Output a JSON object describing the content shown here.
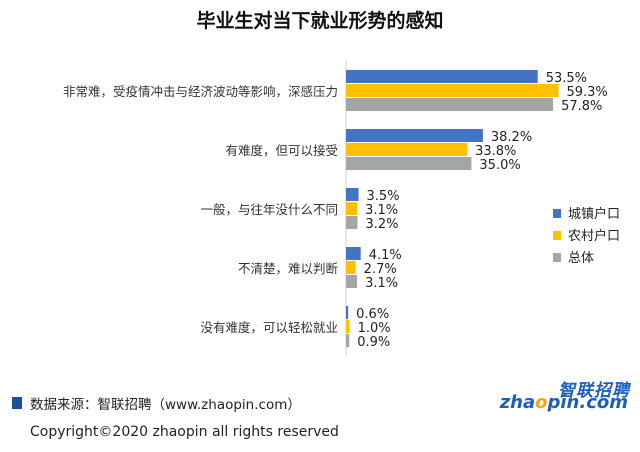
{
  "chart_data": {
    "type": "bar",
    "orientation": "horizontal",
    "title": "毕业生对当下就业形势的感知",
    "categories": [
      "非常难，受疫情冲击与经济波动等影响，深感压力",
      "有难度，但可以接受",
      "一般，与往年没什么不同",
      "不清楚，难以判断",
      "没有难度，可以轻松就业"
    ],
    "series": [
      {
        "name": "城镇户口",
        "color": "#4472c4",
        "values": [
          53.5,
          38.2,
          3.5,
          4.1,
          0.6
        ],
        "labels": [
          "53.5%",
          "38.2%",
          "3.5%",
          "4.1%",
          "0.6%"
        ]
      },
      {
        "name": "农村户口",
        "color": "#ffc000",
        "values": [
          59.3,
          33.8,
          3.1,
          2.7,
          1.0
        ],
        "labels": [
          "59.3%",
          "33.8%",
          "3.1%",
          "2.7%",
          "1.0%"
        ]
      },
      {
        "name": "总体",
        "color": "#a5a5a5",
        "values": [
          57.8,
          35.0,
          3.2,
          3.1,
          0.9
        ],
        "labels": [
          "57.8%",
          "35.0%",
          "3.2%",
          "3.1%",
          "0.9%"
        ]
      }
    ],
    "xlim": [
      0,
      60
    ],
    "legend": "right",
    "grid": false
  },
  "footer": {
    "source": "数据来源：智联招聘（www.zhaopin.com）",
    "copyright": "Copyright©2020 zhaopin all rights reserved"
  },
  "logo": {
    "cn": "智联招聘",
    "en_pre": "zha",
    "en_accent": "o",
    "en_post": "pin.com"
  }
}
